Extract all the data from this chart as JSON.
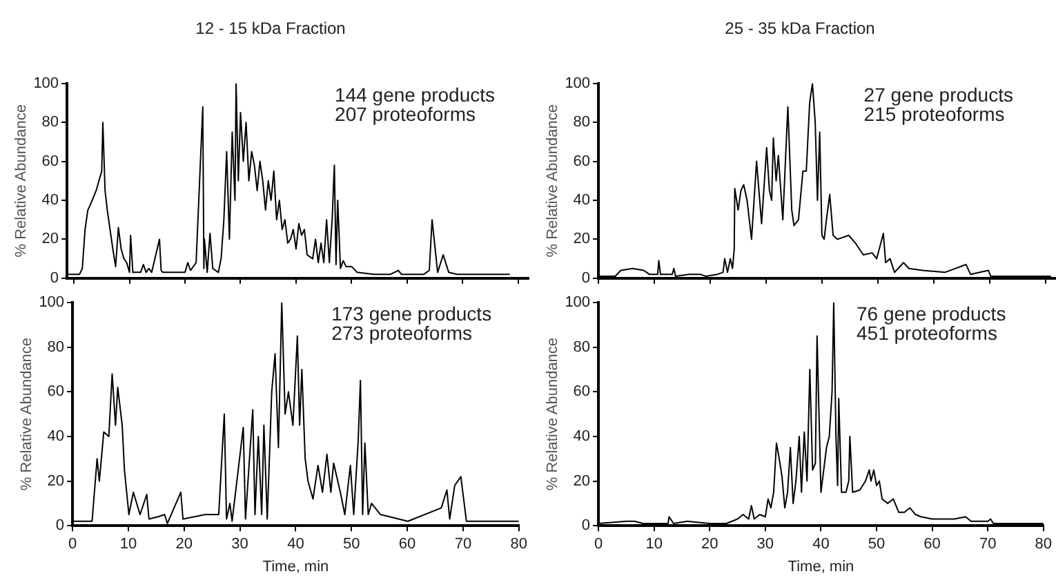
{
  "chart_data": [
    {
      "type": "line",
      "title": "12 - 15 kDa Fraction",
      "ylabel": "% Relative Abundance",
      "annotations": [
        "144 gene products",
        "207 proteoforms"
      ],
      "xlim": [
        -1.25,
        81.9
      ],
      "xticks": [
        0,
        10,
        20,
        30,
        40,
        50,
        60,
        70,
        80
      ],
      "ylim": [
        0,
        100
      ],
      "yticks": [
        0,
        20,
        40,
        60,
        80,
        100
      ],
      "tick_labels": "y",
      "grid": false,
      "legend": false,
      "marker": "none",
      "line_style": "solid",
      "series": [
        {
          "color": "#000000",
          "x": [
            -1,
            1,
            1.5,
            2,
            2.5,
            3,
            4,
            4.5,
            5,
            5.2,
            5.6,
            6,
            6.5,
            7,
            7.5,
            8,
            8.5,
            9,
            9.5,
            10,
            10.2,
            10.6,
            12,
            12.5,
            13,
            13.5,
            14,
            15.4,
            15.7,
            16,
            18,
            20,
            20.5,
            21,
            22,
            23.2,
            23.4,
            23.5,
            24,
            24.5,
            25,
            26,
            26.5,
            27,
            27.5,
            28,
            28.5,
            29,
            29.2,
            29.6,
            30,
            30.5,
            31,
            31.5,
            32,
            32.5,
            33,
            33.5,
            34,
            34.5,
            35,
            35.5,
            36,
            36.5,
            37,
            37.5,
            38,
            38.5,
            39,
            39.5,
            40,
            40.5,
            41,
            41.5,
            42,
            43,
            43.5,
            44,
            44.5,
            45,
            45.5,
            46,
            46.5,
            46.9,
            47.2,
            47.5,
            48,
            48.5,
            49,
            50,
            51,
            54,
            57,
            58.4,
            59,
            63,
            64,
            64.5,
            65.5,
            66.5,
            67.5,
            69,
            74,
            78.5
          ],
          "values": [
            2,
            2,
            5,
            25,
            35,
            38,
            45,
            50,
            55,
            80,
            45,
            35,
            25,
            15,
            6,
            26,
            15,
            10,
            8,
            3,
            22,
            3,
            3,
            7,
            3,
            5,
            3,
            20,
            4,
            3,
            3,
            3,
            8,
            4,
            8,
            88,
            5,
            20,
            3,
            23,
            5,
            3,
            10,
            30,
            65,
            20,
            75,
            40,
            100,
            50,
            85,
            60,
            80,
            50,
            65,
            58,
            45,
            60,
            50,
            35,
            50,
            40,
            55,
            30,
            40,
            25,
            30,
            18,
            20,
            25,
            15,
            28,
            22,
            25,
            12,
            10,
            20,
            8,
            18,
            8,
            30,
            8,
            30,
            58,
            7,
            40,
            5,
            9,
            6,
            6,
            3,
            2,
            2,
            4,
            2,
            2,
            4,
            30,
            3,
            12,
            3,
            2,
            2,
            2
          ]
        }
      ]
    },
    {
      "type": "line",
      "title": "25 - 35 kDa Fraction",
      "ylabel": "% Relative Abundance",
      "annotations": [
        "27 gene products",
        "215 proteoforms"
      ],
      "xlim": [
        0,
        81.9
      ],
      "xticks": [
        0,
        10,
        20,
        30,
        40,
        50,
        60,
        70,
        80
      ],
      "ylim": [
        0,
        100
      ],
      "yticks": [
        0,
        20,
        40,
        60,
        80,
        100
      ],
      "tick_labels": "y",
      "grid": false,
      "legend": false,
      "marker": "none",
      "line_style": "solid",
      "series": [
        {
          "color": "#000000",
          "x": [
            0,
            3,
            4,
            6.1,
            8.1,
            9.1,
            10.6,
            10.8,
            11.1,
            13.2,
            13.5,
            13.8,
            16.2,
            18.2,
            19.2,
            21.3,
            22.3,
            22.6,
            23.1,
            23.6,
            24,
            24.3,
            24.4,
            25,
            25.5,
            26,
            26.6,
            27.4,
            28.3,
            29.2,
            30.1,
            30.6,
            31,
            31.3,
            31.8,
            32.2,
            33,
            33.9,
            34.6,
            35,
            35.8,
            36.6,
            37.2,
            37.8,
            38.3,
            38.8,
            39.2,
            39.6,
            40,
            40.4,
            40.8,
            41.4,
            42,
            42.8,
            44.8,
            46,
            47.4,
            49,
            49.8,
            51,
            51.4,
            52.2,
            53,
            54.6,
            55.6,
            58,
            62,
            65.8,
            66.6,
            69.8,
            70.2,
            81
          ],
          "values": [
            1,
            1,
            4,
            5,
            4,
            2,
            2,
            9,
            2,
            2,
            5,
            1,
            2,
            2,
            1,
            2,
            3,
            10,
            3,
            10,
            5,
            15,
            46,
            35,
            45,
            48,
            40,
            20,
            60,
            28,
            67,
            45,
            40,
            72,
            50,
            63,
            30,
            88,
            35,
            27,
            30,
            55,
            55,
            90,
            100,
            80,
            40,
            75,
            22,
            20,
            30,
            43,
            22,
            20,
            22,
            18,
            12,
            13,
            10,
            23,
            8,
            10,
            3,
            8,
            5,
            4,
            3,
            7,
            2,
            4,
            1,
            1
          ]
        }
      ]
    },
    {
      "type": "line",
      "xlabel": "Time, min",
      "ylabel": "% Relative Abundance",
      "annotations": [
        "173 gene products",
        "273 proteoforms"
      ],
      "xlim": [
        0,
        80
      ],
      "xticks": [
        0,
        10,
        20,
        30,
        40,
        50,
        60,
        70,
        80
      ],
      "ylim": [
        0,
        100
      ],
      "yticks": [
        0,
        20,
        40,
        60,
        80,
        100
      ],
      "grid": false,
      "legend": false,
      "marker": "none",
      "line_style": "solid",
      "series": [
        {
          "color": "#000000",
          "x": [
            0,
            3.5,
            4.4,
            4.8,
            5.6,
            6.5,
            7.1,
            7.7,
            8.1,
            8.9,
            9.3,
            10.1,
            10.9,
            12.1,
            13.3,
            13.7,
            15.3,
            16.5,
            17,
            19.4,
            19.8,
            23.8,
            26.2,
            27.2,
            27.6,
            28.2,
            28.6,
            30.6,
            31,
            32.3,
            32.7,
            33.3,
            33.9,
            34.3,
            34.9,
            35.7,
            36.3,
            36.9,
            37.5,
            38.1,
            38.7,
            39.5,
            40.3,
            40.7,
            41.1,
            41.7,
            42.2,
            43.1,
            44,
            44.8,
            45.6,
            46.3,
            46.8,
            48,
            48.8,
            49.8,
            50.4,
            51.2,
            51.6,
            52,
            52.4,
            53,
            53.6,
            55.2,
            60.1,
            66.1,
            67.1,
            67.6,
            68.5,
            69.6,
            70.6,
            80
          ],
          "values": [
            2,
            2,
            30,
            20,
            42,
            40,
            68,
            45,
            62,
            45,
            25,
            5,
            15,
            5,
            14,
            3,
            4,
            5,
            1,
            15,
            3,
            5,
            5,
            50,
            3,
            10,
            2,
            44,
            3,
            52,
            5,
            40,
            5,
            45,
            3,
            60,
            77,
            35,
            100,
            50,
            60,
            45,
            85,
            45,
            70,
            30,
            20,
            12,
            27,
            15,
            32,
            15,
            28,
            15,
            5,
            27,
            5,
            38,
            65,
            5,
            37,
            5,
            10,
            5,
            2,
            8,
            16,
            3,
            18,
            22,
            2,
            2
          ]
        }
      ]
    },
    {
      "type": "line",
      "xlabel": "Time, min",
      "ylabel": "% Relative Abundance",
      "annotations": [
        "76 gene products",
        "451 proteoforms"
      ],
      "xlim": [
        0,
        80
      ],
      "xticks": [
        0,
        10,
        20,
        30,
        40,
        50,
        60,
        70,
        80
      ],
      "ylim": [
        0,
        100
      ],
      "yticks": [
        0,
        20,
        40,
        60,
        80,
        100
      ],
      "grid": false,
      "legend": false,
      "marker": "none",
      "line_style": "solid",
      "series": [
        {
          "color": "#000000",
          "x": [
            0,
            5,
            6.5,
            8,
            12.5,
            12.7,
            13.5,
            16,
            20,
            23,
            25,
            26,
            27,
            27.5,
            28,
            29,
            30,
            30.5,
            31,
            31.5,
            32,
            32.5,
            33,
            33.5,
            34,
            34.5,
            35,
            35.5,
            36.1,
            36.5,
            37,
            37.5,
            38,
            38.5,
            39,
            39.3,
            40,
            40.5,
            41,
            41.5,
            42,
            42.3,
            42.7,
            43,
            43.2,
            43.7,
            44.5,
            45,
            45.2,
            45.7,
            47,
            48,
            48.7,
            49,
            49.5,
            50,
            50.5,
            51,
            52,
            53,
            54,
            55,
            56,
            57,
            58,
            60,
            62,
            64,
            66,
            67,
            70,
            70.5,
            71,
            80
          ],
          "values": [
            1,
            2,
            2,
            1,
            1,
            4,
            1,
            2,
            1,
            1,
            3,
            5,
            3,
            9,
            3,
            5,
            4,
            12,
            8,
            15,
            37,
            30,
            22,
            8,
            15,
            35,
            10,
            20,
            40,
            15,
            42,
            20,
            70,
            25,
            28,
            85,
            15,
            25,
            35,
            40,
            60,
            100,
            40,
            18,
            57,
            15,
            15,
            20,
            40,
            15,
            16,
            20,
            25,
            20,
            25,
            18,
            20,
            12,
            10,
            12,
            6,
            6,
            8,
            5,
            4,
            3,
            3,
            3,
            4,
            2,
            2,
            3,
            1,
            1
          ]
        }
      ]
    }
  ]
}
